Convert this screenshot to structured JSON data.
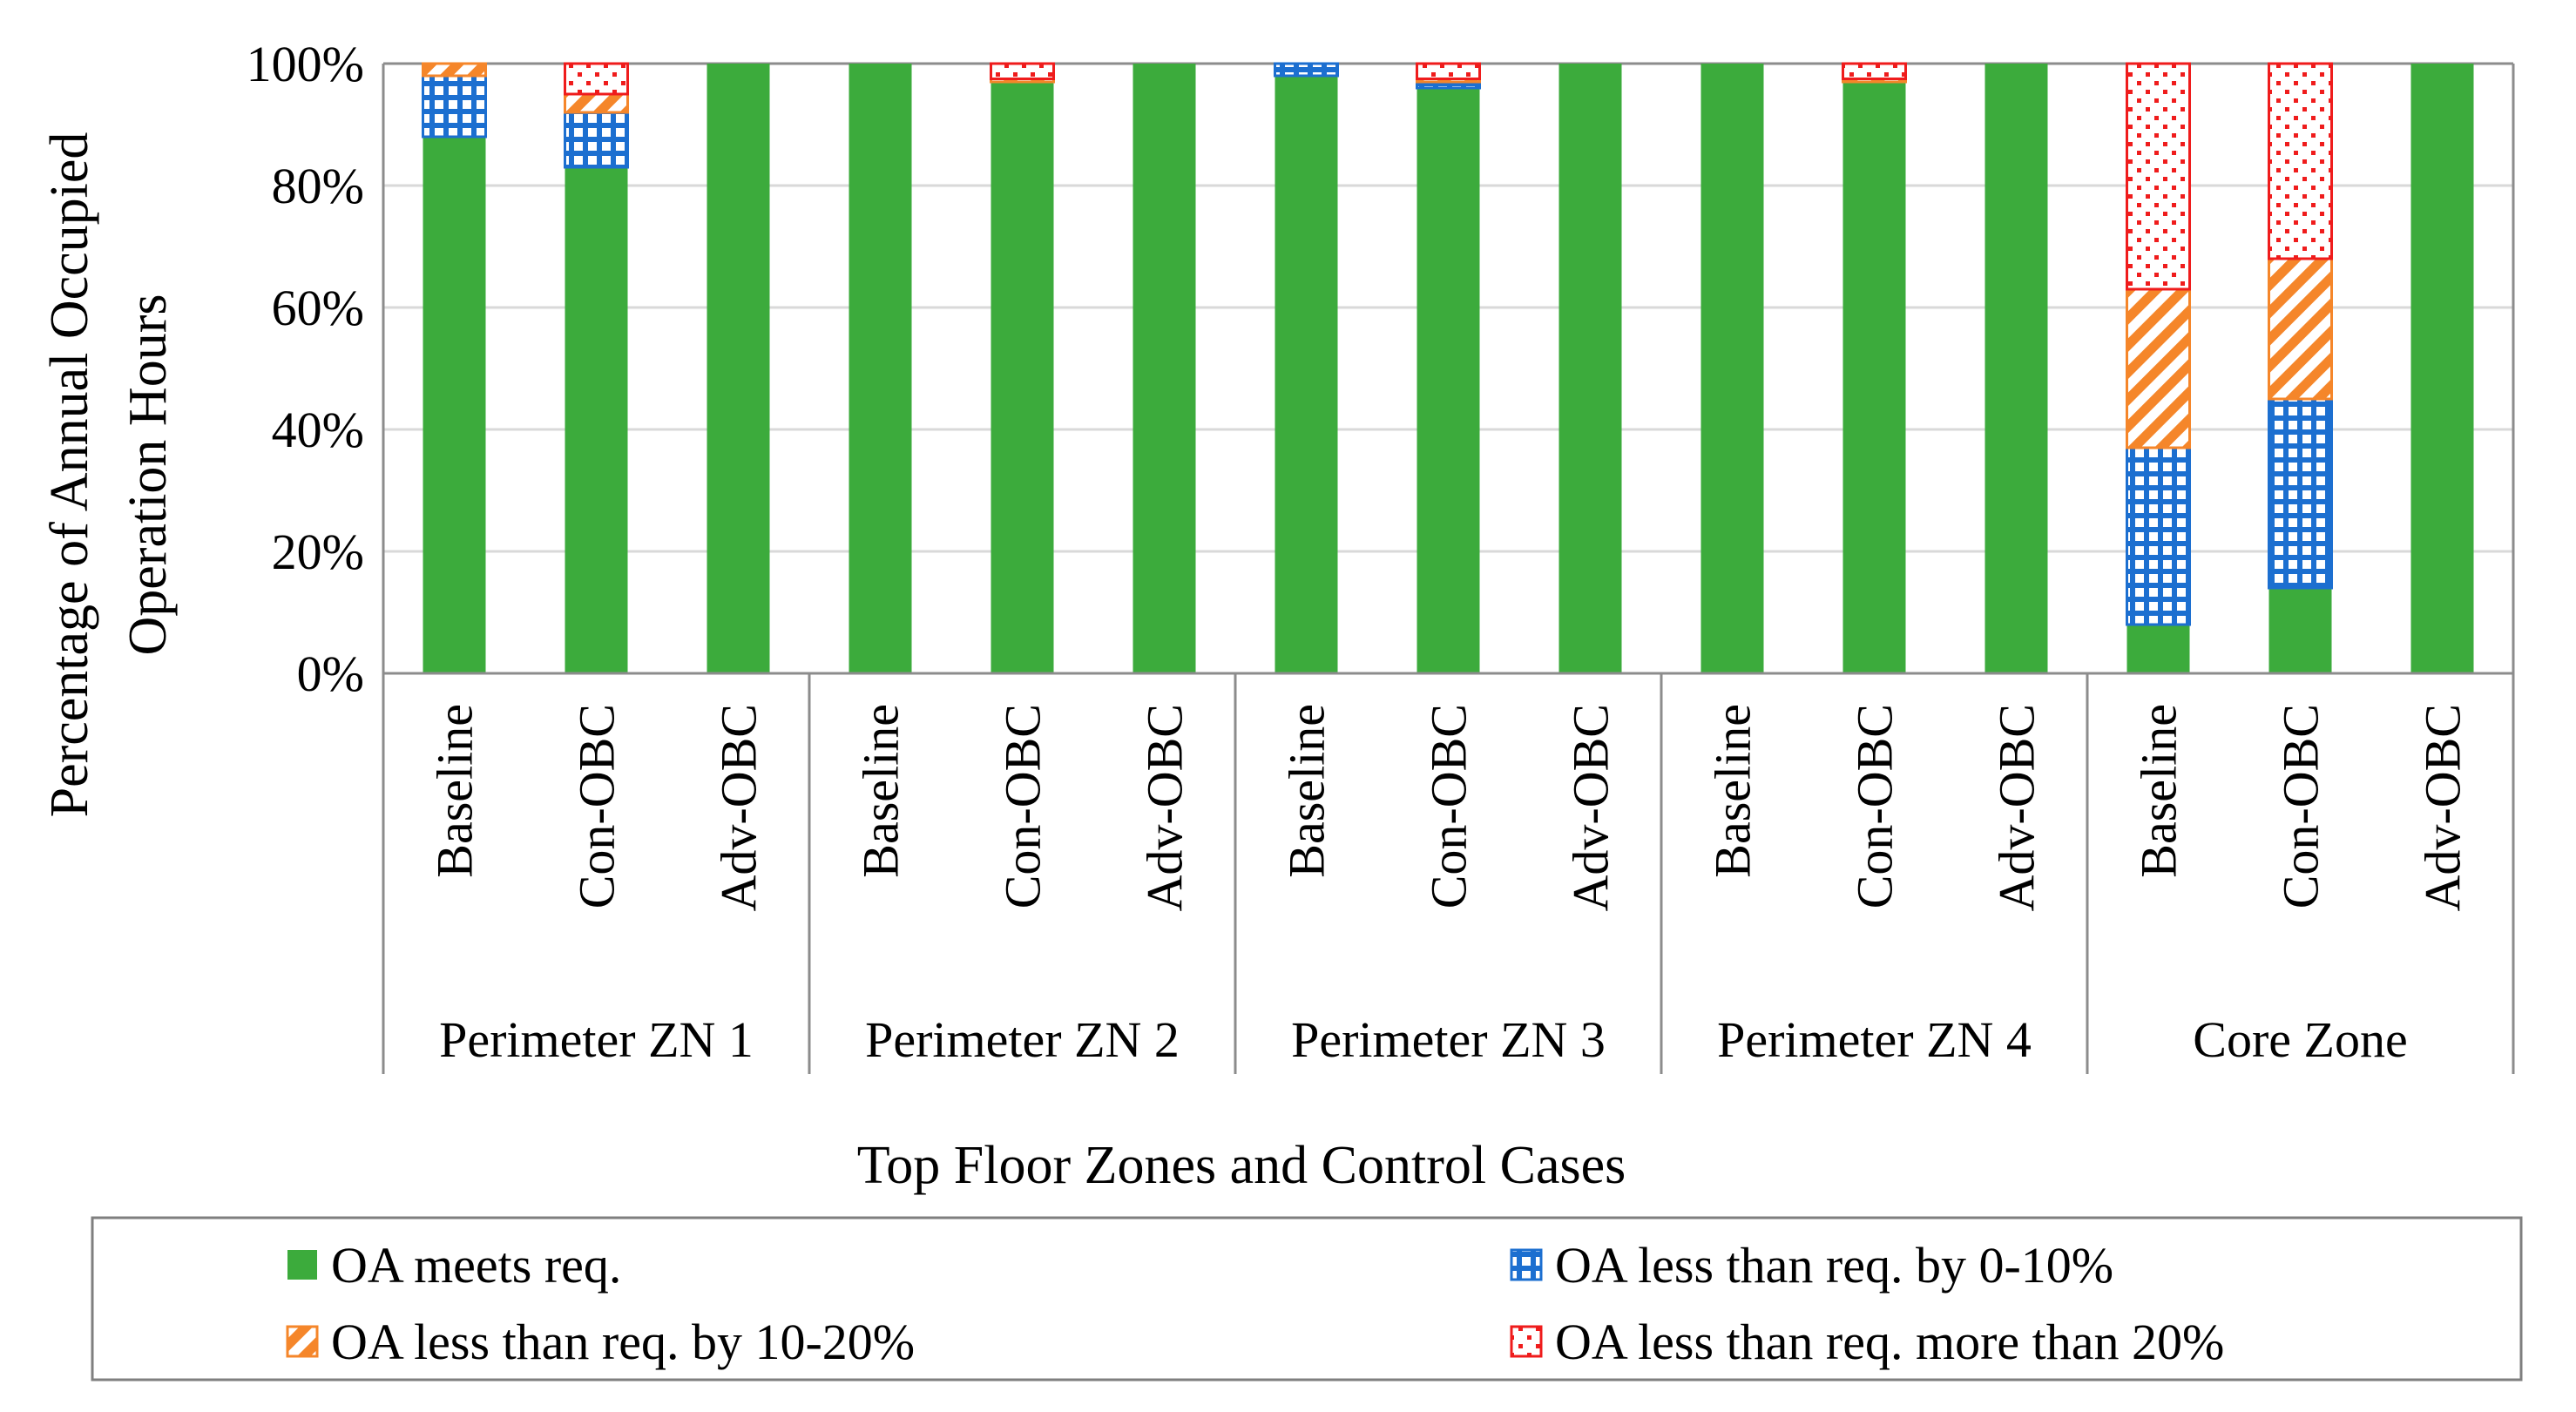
{
  "chart_data": {
    "type": "bar",
    "stacked": true,
    "ylabel_lines": [
      "Percentage  of Annual Occupied",
      "Operation  Hours"
    ],
    "xlabel": "Top Floor Zones and Control Cases",
    "ylim": [
      0,
      100
    ],
    "yticks": [
      0,
      20,
      40,
      60,
      80,
      100
    ],
    "ytick_labels": [
      "0%",
      "20%",
      "40%",
      "60%",
      "80%",
      "100%"
    ],
    "groups": [
      {
        "name": "Perimeter ZN 1",
        "cases": [
          "Baseline",
          "Con-OBC",
          "Adv-OBC"
        ]
      },
      {
        "name": "Perimeter ZN 2",
        "cases": [
          "Baseline",
          "Con-OBC",
          "Adv-OBC"
        ]
      },
      {
        "name": "Perimeter ZN 3",
        "cases": [
          "Baseline",
          "Con-OBC",
          "Adv-OBC"
        ]
      },
      {
        "name": "Perimeter ZN 4",
        "cases": [
          "Baseline",
          "Con-OBC",
          "Adv-OBC"
        ]
      },
      {
        "name": "Core Zone",
        "cases": [
          "Baseline",
          "Con-OBC",
          "Adv-OBC"
        ]
      }
    ],
    "series": [
      {
        "name": "OA meets req.",
        "color": "#3cab3c",
        "pattern": "solid",
        "values": [
          88,
          83,
          100,
          100,
          97,
          100,
          98,
          96,
          100,
          100,
          97,
          100,
          8,
          14,
          100
        ]
      },
      {
        "name": "OA less than req. by 0-10%",
        "color": "#1c6fd0",
        "pattern": "grid",
        "values": [
          10,
          9,
          0,
          0,
          0,
          0,
          2,
          1,
          0,
          0,
          0,
          0,
          29,
          31,
          0
        ]
      },
      {
        "name": "OA less than req. by 10-20%",
        "color": "#f5862a",
        "pattern": "diagonal",
        "values": [
          2,
          3,
          0,
          0,
          0.5,
          0,
          0,
          0.5,
          0,
          0,
          0.5,
          0,
          26,
          23,
          0
        ]
      },
      {
        "name": "OA less than req. more than 20%",
        "color": "#ef1c1c",
        "pattern": "dots",
        "values": [
          0,
          5,
          0,
          0,
          2.5,
          0,
          0,
          2.5,
          0,
          0,
          2.5,
          0,
          37,
          32,
          0
        ]
      }
    ],
    "legend": {
      "placement": "bottom",
      "columns": 2
    }
  }
}
